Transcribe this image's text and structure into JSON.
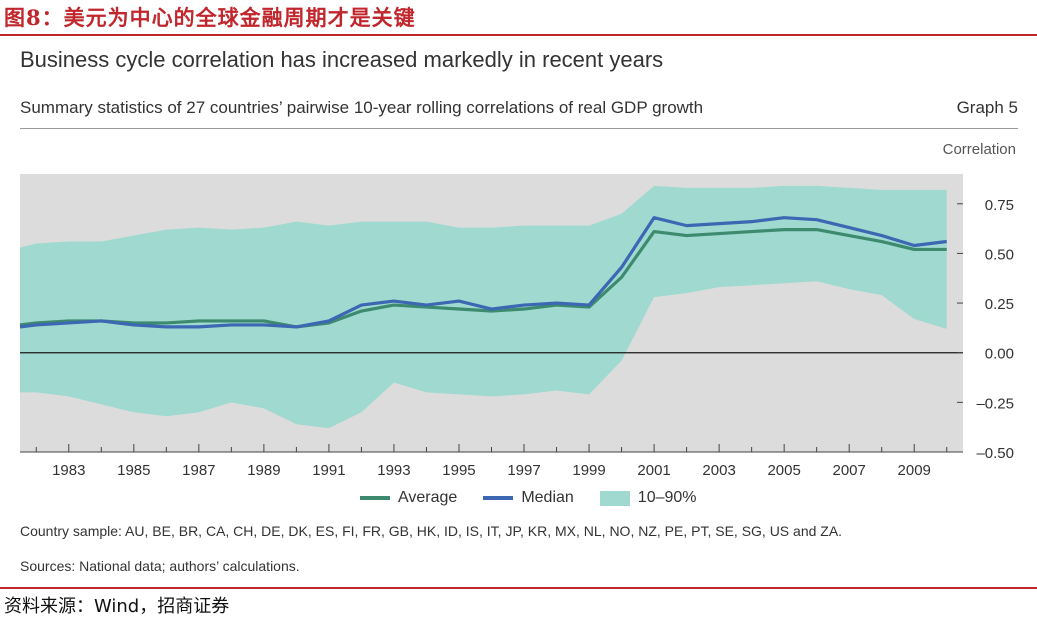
{
  "figure_title": "图8：美元为中心的全球金融周期才是关键",
  "headline": "Business cycle correlation has increased markedly in recent years",
  "subtitle": "Summary statistics of 27 countries’ pairwise 10-year rolling correlations of real GDP growth",
  "graph_number": "Graph 5",
  "note": "Country sample: AU, BE, BR, CA, CH, DE, DK, ES, FI, FR, GB, HK, ID, IS, IT, JP, KR, MX, NL, NO, NZ, PE, PT, SE, SG, US and ZA.",
  "sources": "Sources: National data; authors’ calculations.",
  "source_cn": "资料来源：Wind，招商证券",
  "colors": {
    "average": "#3d8a6e",
    "median": "#3b67b3",
    "band": "#9fd9d0",
    "plot_bg": "#dcdcdc",
    "accent_red": "#c0272d"
  },
  "chart_data": {
    "type": "line",
    "ylabel": "Correlation",
    "ylim": [
      -0.5,
      0.9
    ],
    "yticks": [
      -0.5,
      -0.25,
      0.0,
      0.25,
      0.5,
      0.75
    ],
    "ytick_labels": [
      "–0.50",
      "–0.25",
      "0.00",
      "0.25",
      "0.50",
      "0.75"
    ],
    "xlim": [
      1981.5,
      2010.5
    ],
    "xticks": [
      1983,
      1985,
      1987,
      1989,
      1991,
      1993,
      1995,
      1997,
      1999,
      2001,
      2003,
      2005,
      2007,
      2009
    ],
    "xtick_labels": [
      "1983",
      "1985",
      "1987",
      "1989",
      "1991",
      "1993",
      "1995",
      "1997",
      "1999",
      "2001",
      "2003",
      "2005",
      "2007",
      "2009"
    ],
    "x": [
      1981.5,
      1982,
      1983,
      1984,
      1985,
      1986,
      1987,
      1988,
      1989,
      1990,
      1991,
      1992,
      1993,
      1994,
      1995,
      1996,
      1997,
      1998,
      1999,
      2000,
      2001,
      2002,
      2003,
      2004,
      2005,
      2006,
      2007,
      2008,
      2009,
      2010
    ],
    "series": [
      {
        "name": "Average",
        "values": [
          0.14,
          0.15,
          0.16,
          0.16,
          0.15,
          0.15,
          0.16,
          0.16,
          0.16,
          0.13,
          0.15,
          0.21,
          0.24,
          0.23,
          0.22,
          0.21,
          0.22,
          0.24,
          0.23,
          0.38,
          0.61,
          0.59,
          0.6,
          0.61,
          0.62,
          0.62,
          0.59,
          0.56,
          0.52,
          0.52
        ]
      },
      {
        "name": "Median",
        "values": [
          0.13,
          0.14,
          0.15,
          0.16,
          0.14,
          0.13,
          0.13,
          0.14,
          0.14,
          0.13,
          0.16,
          0.24,
          0.26,
          0.24,
          0.26,
          0.22,
          0.24,
          0.25,
          0.24,
          0.43,
          0.68,
          0.64,
          0.65,
          0.66,
          0.68,
          0.67,
          0.63,
          0.59,
          0.54,
          0.56
        ]
      }
    ],
    "band": {
      "name": "10–90%",
      "lower": [
        -0.2,
        -0.2,
        -0.22,
        -0.26,
        -0.3,
        -0.32,
        -0.3,
        -0.25,
        -0.28,
        -0.36,
        -0.38,
        -0.3,
        -0.15,
        -0.2,
        -0.21,
        -0.22,
        -0.21,
        -0.19,
        -0.21,
        -0.04,
        0.28,
        0.3,
        0.33,
        0.34,
        0.35,
        0.36,
        0.32,
        0.29,
        0.17,
        0.12
      ],
      "upper": [
        0.53,
        0.55,
        0.56,
        0.56,
        0.59,
        0.62,
        0.63,
        0.62,
        0.63,
        0.66,
        0.64,
        0.66,
        0.66,
        0.66,
        0.63,
        0.63,
        0.64,
        0.64,
        0.64,
        0.7,
        0.84,
        0.83,
        0.83,
        0.83,
        0.84,
        0.84,
        0.83,
        0.82,
        0.82,
        0.82
      ]
    },
    "legend_position": "bottom-center",
    "grid": false
  }
}
